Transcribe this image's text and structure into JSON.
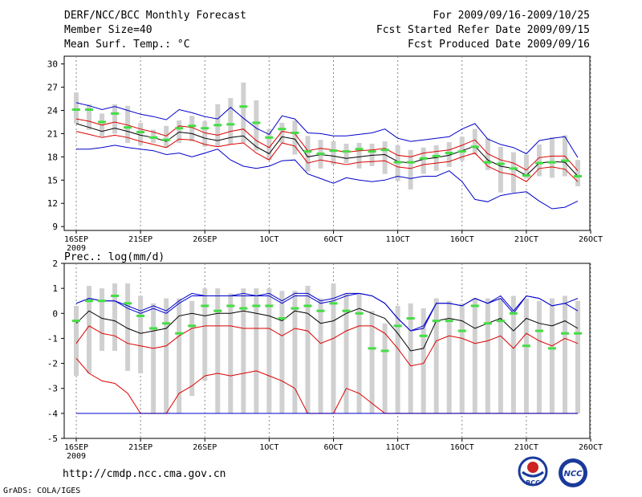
{
  "header": {
    "title": "DERF/NCC/BCC Monthly Forecast",
    "member_size": "Member Size=40",
    "variable": "Mean Surf. Temp.: °C",
    "period": "For 2009/09/16-2009/10/25",
    "started": "Fcst Started Refer Date 2009/09/15",
    "produced": "Fcst Produced Date 2009/09/16"
  },
  "footer": {
    "url": "http://cmdp.ncc.cma.gov.cn",
    "grads": "GrADS: COLA/IGES",
    "logo_left_text": "BCC",
    "logo_right_text": "NCC"
  },
  "colors": {
    "box": "#d0d0d0",
    "median_dash": "#44dd44",
    "mean_line": "#000000",
    "spread_line": "#dd0000",
    "extreme_line": "#0000cc",
    "grid": "#888888"
  },
  "chart_data": [
    {
      "type": "line",
      "title": "Mean Surf. Temp.: °C",
      "x_labels": [
        "16SEP",
        "21SEP",
        "26SEP",
        "1OCT",
        "6OCT",
        "11OCT",
        "16OCT",
        "21OCT",
        "26OCT"
      ],
      "x_sublabel": "2009",
      "y_ticks": [
        9,
        12,
        15,
        18,
        21,
        24,
        27,
        30
      ],
      "ylim": [
        8.5,
        31
      ],
      "days": 40,
      "series": [
        {
          "name": "max",
          "values": [
            19,
            19,
            19.2,
            19.5,
            19.2,
            19,
            18.8,
            18.3,
            18.5,
            18,
            18.5,
            19,
            17.6,
            16.8,
            16.5,
            16.8,
            17.5,
            17.6,
            15.8,
            15.2,
            14.6,
            15.3,
            15,
            14.8,
            15,
            15.5,
            15.2,
            15.5,
            15.5,
            16.2,
            14.8,
            12.5,
            12.2,
            13,
            13.3,
            13.5,
            12.3,
            11.3,
            11.5,
            12.3
          ]
        },
        {
          "name": "p10",
          "values": [
            21.3,
            20.9,
            20.5,
            20.8,
            20.5,
            20,
            19.6,
            19.2,
            20.3,
            20.2,
            19.6,
            19.3,
            19.6,
            19.8,
            18.5,
            17.6,
            19.8,
            19.4,
            17.2,
            17.6,
            17.3,
            17,
            17.3,
            17.4,
            17.5,
            16.7,
            16.5,
            17,
            17.2,
            17.4,
            18,
            18.5,
            16.8,
            16,
            15.7,
            14.8,
            16.5,
            16.7,
            16.4,
            14.8
          ]
        },
        {
          "name": "mean",
          "values": [
            22.3,
            21.8,
            21.3,
            21.7,
            21.3,
            20.8,
            20.5,
            20,
            21.2,
            21,
            20.4,
            20.1,
            20.5,
            20.7,
            19.3,
            18.4,
            20.6,
            20.3,
            18,
            18.3,
            18.1,
            17.8,
            18,
            18.2,
            18.3,
            17.4,
            17.2,
            17.7,
            17.9,
            18.2,
            18.8,
            19.4,
            17.6,
            16.8,
            16.5,
            15.6,
            17.2,
            17.4,
            17.3,
            15.5
          ]
        },
        {
          "name": "p90",
          "values": [
            22.9,
            22.6,
            22.1,
            22.5,
            22.1,
            21.6,
            21.2,
            20.7,
            22,
            21.8,
            21.1,
            20.8,
            21.3,
            21.6,
            20.1,
            19.2,
            21.3,
            21,
            18.8,
            19.1,
            18.9,
            18.6,
            18.8,
            18.9,
            19.1,
            18.2,
            18,
            18.5,
            18.7,
            18.9,
            19.5,
            20.2,
            18.4,
            17.6,
            17.2,
            16.3,
            17.9,
            18.1,
            18.1,
            16.2
          ]
        },
        {
          "name": "min",
          "values": [
            25,
            24.6,
            24.1,
            24.5,
            24,
            23.5,
            23.2,
            22.8,
            24.1,
            23.7,
            23.2,
            22.9,
            24.4,
            23,
            21.7,
            20.9,
            23.3,
            22.9,
            21.1,
            21,
            20.7,
            20.7,
            20.9,
            21.1,
            21.6,
            20.4,
            20,
            20.2,
            20.4,
            20.6,
            21.6,
            22.3,
            20.3,
            19.6,
            19.2,
            18.4,
            20.1,
            20.4,
            20.6,
            17.9
          ]
        }
      ],
      "median": [
        24.1,
        24.1,
        22.5,
        23.6,
        21.8,
        21.2,
        20.5,
        20.2,
        21.7,
        22,
        21.7,
        22.1,
        22.2,
        24.5,
        22.4,
        20.5,
        21.6,
        21.1,
        18.7,
        18.4,
        18.8,
        18.7,
        19,
        18.7,
        18.9,
        17.3,
        17.3,
        17.8,
        18.1,
        18.5,
        18.7,
        19.3,
        17.3,
        17.1,
        16.5,
        15.6,
        17.2,
        17.3,
        17.5,
        15.5
      ],
      "box_low": [
        22.3,
        21.5,
        20.6,
        21,
        19.8,
        19.5,
        19.8,
        19.2,
        19.8,
        20,
        19.3,
        19.3,
        19.6,
        19.8,
        18.8,
        17.6,
        19.8,
        18.3,
        16.1,
        16.5,
        17,
        17.2,
        16.5,
        16.8,
        15.8,
        14.9,
        13.8,
        15.8,
        16.2,
        16.7,
        17.5,
        18.3,
        16.3,
        13.4,
        13.4,
        15.2,
        15.5,
        15.3,
        15.5,
        14.2
      ],
      "box_high": [
        26.3,
        24.8,
        23.6,
        24.8,
        24.6,
        22.4,
        21.5,
        22,
        22.7,
        23.3,
        22.6,
        24.8,
        25.6,
        27.6,
        25.3,
        21.6,
        22.4,
        22.7,
        20.7,
        20.2,
        20,
        19.7,
        19.8,
        19.7,
        20,
        19.5,
        18.9,
        19.2,
        19.5,
        19.9,
        20.6,
        21.6,
        20.4,
        19.3,
        18.6,
        18.3,
        19.6,
        20.5,
        20.8,
        17.6
      ]
    },
    {
      "type": "line",
      "title": "Prec.: log(mm/d)",
      "x_labels": [
        "16SEP",
        "21SEP",
        "26SEP",
        "1OCT",
        "6OCT",
        "11OCT",
        "16OCT",
        "21OCT",
        "26OCT"
      ],
      "x_sublabel": "2009",
      "y_ticks": [
        -5,
        -4,
        -3,
        -2,
        -1,
        0,
        1,
        2
      ],
      "ylim": [
        -5,
        2
      ],
      "days": 40,
      "series": [
        {
          "name": "low",
          "values": [
            -1.8,
            -2.4,
            -2.7,
            -2.8,
            -3.2,
            -4,
            -4,
            -4,
            -3.2,
            -2.9,
            -2.5,
            -2.4,
            -2.5,
            -2.4,
            -2.3,
            -2.5,
            -2.7,
            -3,
            -4,
            -4,
            -4,
            -3,
            -3.2,
            -3.6,
            -4,
            -4,
            -4,
            -4,
            -4,
            -4,
            -4,
            -4,
            -4,
            -4,
            -4,
            -4,
            -4,
            -4,
            -4,
            -4
          ]
        },
        {
          "name": "p10",
          "values": [
            -1.2,
            -0.5,
            -0.8,
            -0.9,
            -1.2,
            -1.3,
            -1.4,
            -1.3,
            -0.9,
            -0.6,
            -0.5,
            -0.5,
            -0.5,
            -0.6,
            -0.6,
            -0.6,
            -0.9,
            -0.6,
            -0.7,
            -1.2,
            -1.0,
            -0.7,
            -0.5,
            -0.5,
            -0.8,
            -1.4,
            -2.1,
            -2,
            -1.1,
            -0.9,
            -1,
            -1.2,
            -1.1,
            -0.9,
            -1.4,
            -0.8,
            -1.1,
            -1.3,
            -1.0,
            -1.2
          ]
        },
        {
          "name": "mean",
          "values": [
            -0.4,
            0.1,
            -0.2,
            -0.3,
            -0.6,
            -0.8,
            -0.7,
            -0.6,
            -0.1,
            0,
            -0.1,
            0,
            0,
            0.1,
            0,
            -0.1,
            -0.3,
            0.1,
            0,
            -0.4,
            -0.3,
            0,
            0.2,
            0,
            -0.2,
            -0.8,
            -1.5,
            -1.4,
            -0.3,
            -0.2,
            -0.3,
            -0.6,
            -0.4,
            -0.2,
            -0.7,
            -0.2,
            -0.4,
            -0.5,
            -0.3,
            -0.6
          ]
        },
        {
          "name": "high",
          "values": [
            0.4,
            0.6,
            0.5,
            0.5,
            0.2,
            0,
            0.2,
            0,
            0.4,
            0.7,
            0.7,
            0.7,
            0.7,
            0.7,
            0.7,
            0.7,
            0.4,
            0.7,
            0.7,
            0.4,
            0.5,
            0.7,
            0.8,
            0.7,
            0.4,
            -0.2,
            -0.7,
            -0.6,
            0.4,
            0.4,
            0.3,
            0.6,
            0.4,
            0.6,
            0,
            0.7,
            0.6,
            0.3,
            0.4,
            0.6
          ]
        },
        {
          "name": "max",
          "values": [
            0.4,
            0.6,
            0.5,
            0.5,
            0.3,
            0.1,
            0.3,
            0.1,
            0.5,
            0.8,
            0.7,
            0.7,
            0.7,
            0.8,
            0.7,
            0.8,
            0.5,
            0.8,
            0.8,
            0.5,
            0.6,
            0.8,
            0.8,
            0.7,
            0.4,
            -0.2,
            -0.7,
            -0.5,
            0.4,
            0.4,
            0.3,
            0.6,
            0.4,
            0.7,
            0.1,
            0.7,
            0.6,
            0.3,
            0.4,
            0.1
          ]
        }
      ],
      "median": [
        -0.3,
        0.5,
        0.5,
        0.7,
        0.4,
        -0.1,
        -0.6,
        -0.4,
        -0.8,
        -0.5,
        0.3,
        0.1,
        0.3,
        0.2,
        0.3,
        0.3,
        -0.2,
        0.2,
        0.3,
        0.1,
        0.4,
        0.1,
        0,
        -1.4,
        -1.5,
        -0.5,
        -0.2,
        -0.9,
        -0.3,
        -0.3,
        -0.7,
        0.3,
        -0.4,
        -0.3,
        0,
        -1.3,
        -0.7,
        -1.4,
        -0.8,
        -0.8
      ],
      "box_low": [
        -2.5,
        -2.4,
        -1.5,
        -1.5,
        -2.3,
        -2.4,
        -4,
        -4,
        -4,
        -3.3,
        -2.7,
        -4,
        -4,
        -4,
        -4,
        -4,
        -4,
        -4,
        -4,
        -4,
        -4,
        -4,
        -4,
        -4,
        -4,
        -4,
        -4,
        -4,
        -4,
        -4,
        -4,
        -4,
        -4,
        -4,
        -4,
        -4,
        -4,
        -4,
        -4,
        -4
      ],
      "box_high": [
        0.3,
        1.1,
        1,
        1.2,
        1.2,
        0.7,
        0.4,
        0.6,
        0.6,
        0.5,
        1,
        1,
        0.8,
        1,
        1,
        1,
        0.9,
        0.9,
        1.1,
        0.6,
        1.2,
        0.8,
        0.8,
        0.1,
        -0.4,
        0.3,
        0.4,
        0.2,
        0.6,
        0.5,
        0.4,
        0.6,
        0.6,
        0.6,
        0.7,
        0.6,
        0.5,
        0.6,
        0.7,
        0.5
      ]
    }
  ]
}
